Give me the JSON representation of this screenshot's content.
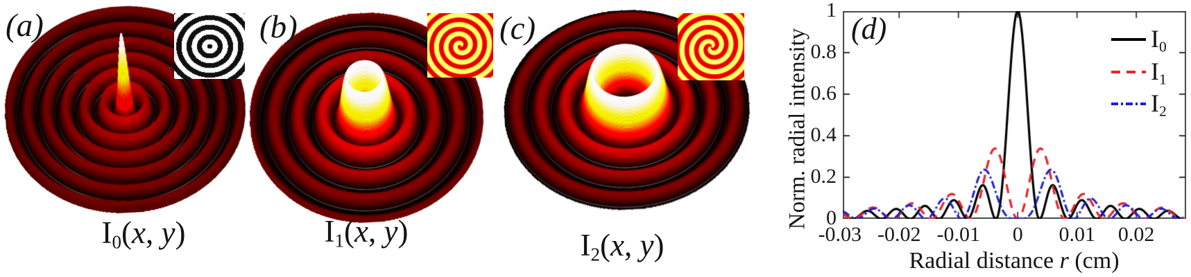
{
  "panels": [
    {
      "id": "a",
      "label": "(a)",
      "caption": {
        "base": "I",
        "sub": "0",
        "open": "(",
        "x": "x",
        "sep": ", ",
        "y": "y",
        "close": ")"
      },
      "surface": {
        "type": "bessel-beam-surface",
        "order": 0,
        "colormap": "hot",
        "core_feature": "central-spike",
        "peak_normalized": 1
      },
      "inset": {
        "type": "binary-axicon-zone-plate",
        "topological_charge": 0,
        "style": "black-white-rings"
      }
    },
    {
      "id": "b",
      "label": "(b)",
      "caption": {
        "base": "I",
        "sub": "1",
        "open": "(",
        "x": "x",
        "sep": ", ",
        "y": "y",
        "close": ")"
      },
      "surface": {
        "type": "bessel-beam-surface",
        "order": 1,
        "colormap": "hot",
        "core_feature": "small-donut",
        "peak_normalized": 1
      },
      "inset": {
        "type": "spiral-axicon-zone-plate",
        "topological_charge": 1,
        "style": "hot-rings-with-fork"
      }
    },
    {
      "id": "c",
      "label": "(c)",
      "caption": {
        "base": "I",
        "sub": "2",
        "open": "(",
        "x": "x",
        "sep": ", ",
        "y": "y",
        "close": ")"
      },
      "surface": {
        "type": "bessel-beam-surface",
        "order": 2,
        "colormap": "hot",
        "core_feature": "large-donut",
        "peak_normalized": 1
      },
      "inset": {
        "type": "spiral-axicon-zone-plate",
        "topological_charge": 2,
        "style": "hot-rings-with-quadrant-forks"
      }
    }
  ],
  "chart_data": {
    "type": "line",
    "panel_label": "(d)",
    "title": "",
    "xlabel": {
      "pre": "Radial distance ",
      "var": "r",
      "post": " (cm)"
    },
    "ylabel": "Norm. radial intensity",
    "xlim": [
      -0.0295,
      0.0284
    ],
    "ylim": [
      0,
      1
    ],
    "grid": false,
    "legend_position": "upper right",
    "xticks": [
      {
        "v": -0.03,
        "label": "-0.03"
      },
      {
        "v": -0.02,
        "label": "-0.02"
      },
      {
        "v": -0.01,
        "label": "-0.01"
      },
      {
        "v": 0,
        "label": "0"
      },
      {
        "v": 0.01,
        "label": "0.01"
      },
      {
        "v": 0.02,
        "label": "0.02"
      }
    ],
    "yticks": [
      {
        "v": 0,
        "label": "0"
      },
      {
        "v": 0.2,
        "label": "0.2"
      },
      {
        "v": 0.4,
        "label": "0.4"
      },
      {
        "v": 0.6,
        "label": "0.6"
      },
      {
        "v": 0.8,
        "label": "0.8"
      },
      {
        "v": 1,
        "label": "1"
      }
    ],
    "series": [
      {
        "name": "I0",
        "label_base": "I",
        "label_sub": "0",
        "color": "#000000",
        "style": "solid",
        "line_width": 3.2,
        "model": "squared-bessel",
        "order": 0,
        "k_per_cm": 650,
        "key_points": [
          {
            "r": 0,
            "y": 1.0
          },
          {
            "r": 0.0059,
            "y": 0.162
          },
          {
            "r": 0.0108,
            "y": 0.09
          },
          {
            "r": 0.0157,
            "y": 0.062
          },
          {
            "r": 0.0205,
            "y": 0.048
          },
          {
            "r": 0.0253,
            "y": 0.039
          }
        ]
      },
      {
        "name": "I1",
        "label_base": "I",
        "label_sub": "1",
        "color": "#e8242b",
        "style": "dashed",
        "line_width": 3.2,
        "model": "squared-bessel",
        "order": 1,
        "k_per_cm": 480,
        "key_points": [
          {
            "r": 0.0038,
            "y": 0.339
          },
          {
            "r": 0.0111,
            "y": 0.118
          },
          {
            "r": 0.0178,
            "y": 0.073
          },
          {
            "r": 0.0244,
            "y": 0.054
          }
        ]
      },
      {
        "name": "I2",
        "label_base": "I",
        "label_sub": "2",
        "color": "#1b1fd6",
        "style": "dashdot",
        "line_width": 3.0,
        "model": "squared-bessel",
        "order": 2,
        "k_per_cm": 545,
        "key_points": [
          {
            "r": 0.0056,
            "y": 0.237
          },
          {
            "r": 0.0123,
            "y": 0.098
          },
          {
            "r": 0.0183,
            "y": 0.063
          },
          {
            "r": 0.0242,
            "y": 0.047
          }
        ]
      }
    ]
  },
  "palette": {
    "background": "#ffffff",
    "ring_crest_red": "#5e0c03",
    "ring_trough": "#1c0200",
    "hot_yellow": "#ffd51e",
    "series_red": "#e8242b",
    "series_blue": "#1b1fd6",
    "series_black": "#000000"
  }
}
